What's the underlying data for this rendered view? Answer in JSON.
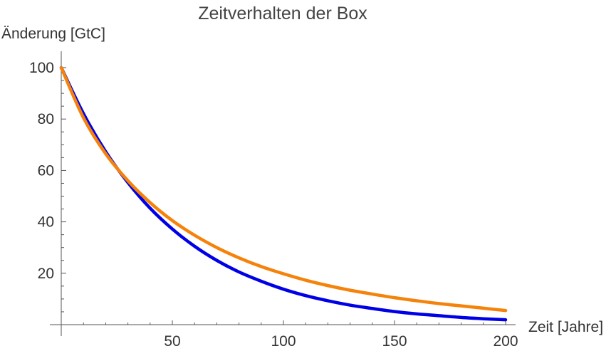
{
  "chart_data": {
    "type": "line",
    "title": "Zeitverhalten der Box",
    "xlabel": "Zeit [Jahre]",
    "ylabel": "Änderung [GtC]",
    "xlim": [
      0,
      200
    ],
    "ylim": [
      0,
      100
    ],
    "x_ticks": [
      50,
      100,
      150,
      200
    ],
    "y_ticks": [
      20,
      40,
      60,
      80,
      100
    ],
    "grid": false,
    "series": [
      {
        "color": "#0000e6",
        "x": [
          0,
          10,
          20,
          30,
          40,
          50,
          60,
          70,
          80,
          90,
          100,
          110,
          120,
          130,
          140,
          150,
          160,
          170,
          180,
          190,
          200
        ],
        "y": [
          100,
          82.1,
          67.3,
          55.3,
          45.3,
          37.2,
          30.5,
          25.0,
          20.5,
          16.9,
          13.8,
          11.3,
          9.3,
          7.6,
          6.3,
          5.1,
          4.2,
          3.5,
          2.8,
          2.3,
          1.9
        ]
      },
      {
        "color": "#f5820a",
        "x": [
          0,
          10,
          20,
          30,
          40,
          50,
          60,
          70,
          80,
          90,
          100,
          110,
          120,
          130,
          140,
          150,
          160,
          170,
          180,
          190,
          200
        ],
        "y": [
          100,
          80.5,
          66.5,
          56.0,
          47.5,
          40.5,
          34.8,
          30.0,
          26.0,
          22.6,
          19.8,
          17.3,
          15.2,
          13.4,
          11.9,
          10.5,
          9.3,
          8.2,
          7.3,
          6.4,
          5.5
        ]
      }
    ]
  }
}
